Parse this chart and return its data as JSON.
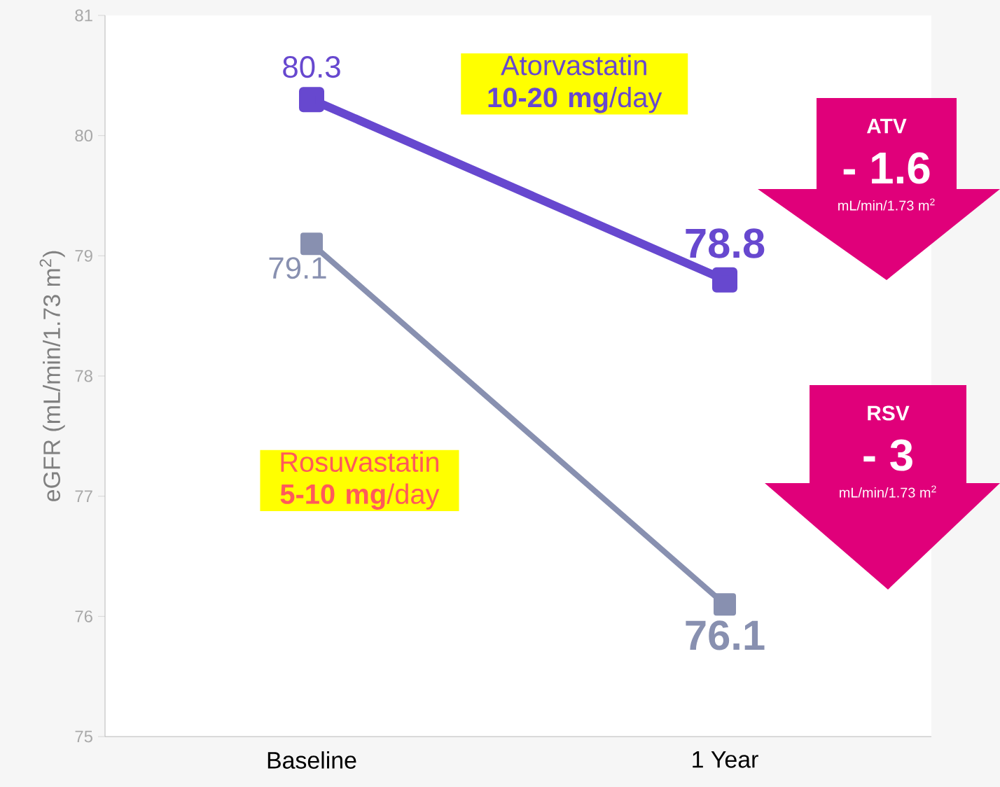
{
  "chart_data": {
    "type": "line",
    "ylabel": "eGFR (mL/min/1.73 m$^{2}$)",
    "categories": [
      "Baseline",
      "1 Year"
    ],
    "ylim": [
      75,
      81
    ],
    "yticks": [
      75,
      76,
      77,
      78,
      79,
      80,
      81
    ],
    "series": [
      {
        "name": "Atorvastatin **10-20 mg**/day",
        "color": "#6748cf",
        "values": [
          80.3,
          78.8
        ]
      },
      {
        "name": "Rosuvastatin **5-10 mg**/day",
        "color": "#8890b0",
        "values": [
          79.1,
          76.1
        ]
      }
    ],
    "data_labels": true,
    "marker": "square",
    "line_style": "solid",
    "grid": false,
    "annotations": [
      "ATV",
      "- 1.6",
      "mL/min/1.73 m$^{2}$",
      "RSV",
      "- 3",
      "mL/min/1.73 m$^{2}$"
    ]
  }
}
